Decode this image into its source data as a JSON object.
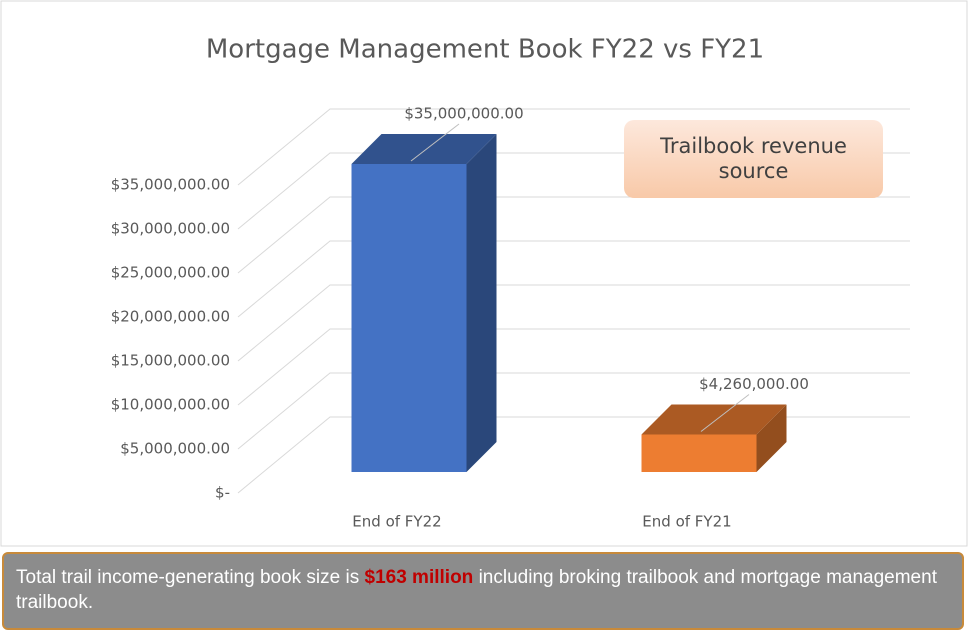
{
  "chart_data": {
    "type": "bar3d",
    "title": "Mortgage Management Book FY22 vs FY21",
    "categories": [
      "End of FY22",
      "End of FY21"
    ],
    "values": [
      35000000,
      4260000
    ],
    "value_labels": [
      "$35,000,000.00",
      "$4,260,000.00"
    ],
    "colors": [
      "#4472c4",
      "#ed7d31"
    ],
    "ylim": [
      0,
      35000000
    ],
    "yticks": [
      {
        "value": 0,
        "label": "$-"
      },
      {
        "value": 5000000,
        "label": "$5,000,000.00"
      },
      {
        "value": 10000000,
        "label": "$10,000,000.00"
      },
      {
        "value": 15000000,
        "label": "$15,000,000.00"
      },
      {
        "value": 20000000,
        "label": "$20,000,000.00"
      },
      {
        "value": 25000000,
        "label": "$25,000,000.00"
      },
      {
        "value": 30000000,
        "label": "$30,000,000.00"
      },
      {
        "value": 35000000,
        "label": "$35,000,000.00"
      }
    ],
    "grid": true,
    "annotation": "Trailbook revenue source"
  },
  "caption": {
    "before": "Total trail income-generating book size is ",
    "highlight": "$163 million",
    "after": " including broking trailbook and mortgage management trailbook."
  }
}
